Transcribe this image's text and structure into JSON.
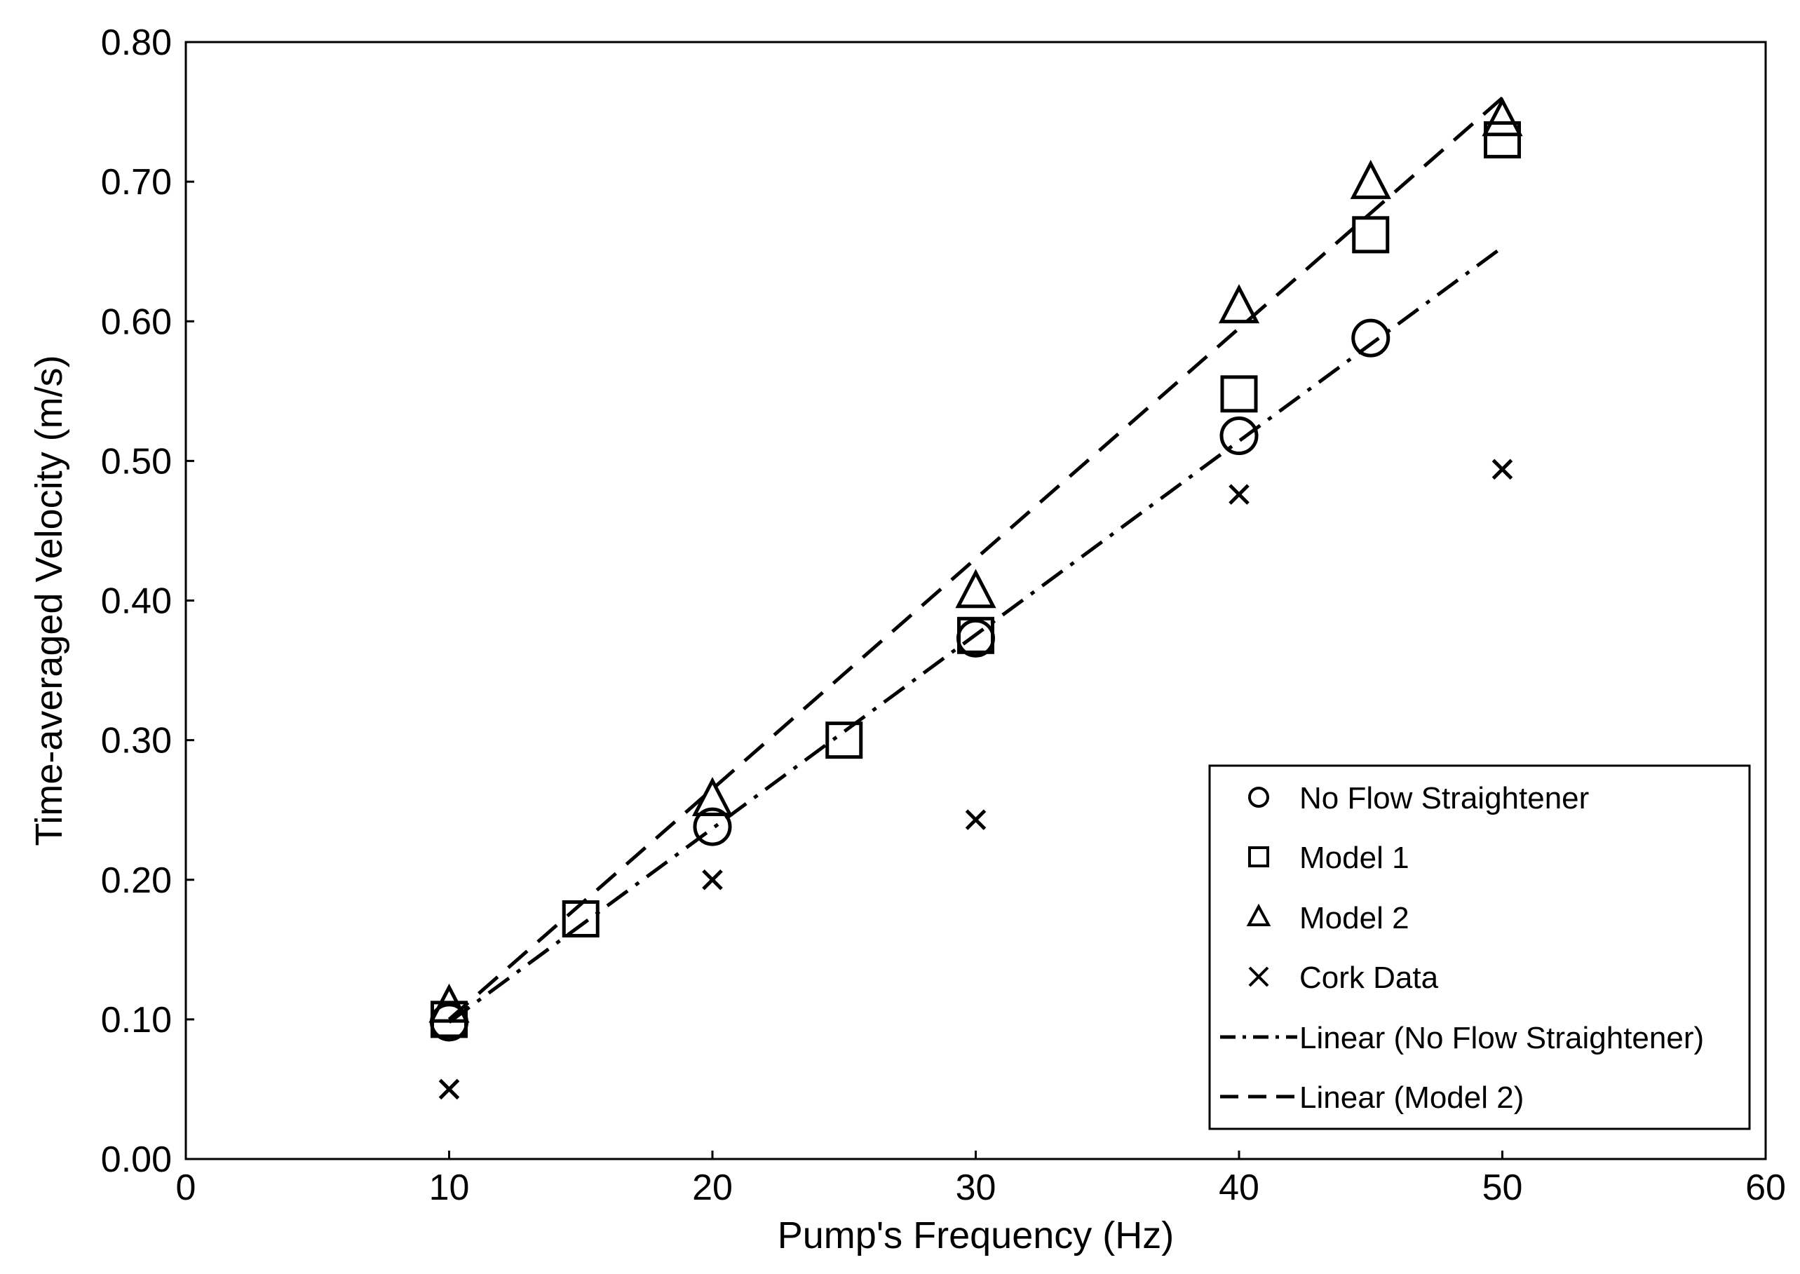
{
  "chart_data": {
    "type": "scatter",
    "title": "",
    "xlabel": "Pump's Frequency (Hz)",
    "ylabel": "Time-averaged  Velocity (m/s)",
    "xlim": [
      0,
      60
    ],
    "ylim": [
      0,
      0.8
    ],
    "xticks": [
      "0",
      "10",
      "20",
      "30",
      "40",
      "50",
      "60"
    ],
    "yticks": [
      "0.00",
      "0.10",
      "0.20",
      "0.30",
      "0.40",
      "0.50",
      "0.60",
      "0.70",
      "0.80"
    ],
    "grid": false,
    "legend_position": "bottom-right",
    "series": [
      {
        "name": "No Flow Straightener",
        "marker": "circle",
        "points": [
          [
            10,
            0.098
          ],
          [
            20,
            0.238
          ],
          [
            30,
            0.373
          ],
          [
            40,
            0.518
          ],
          [
            45,
            0.588
          ]
        ]
      },
      {
        "name": "Model 1",
        "marker": "square",
        "points": [
          [
            10,
            0.1
          ],
          [
            15,
            0.172
          ],
          [
            25,
            0.3
          ],
          [
            30,
            0.375
          ],
          [
            40,
            0.548
          ],
          [
            45,
            0.662
          ],
          [
            50,
            0.73
          ]
        ]
      },
      {
        "name": "Model 2",
        "marker": "triangle",
        "points": [
          [
            10,
            0.108
          ],
          [
            20,
            0.256
          ],
          [
            30,
            0.405
          ],
          [
            40,
            0.609
          ],
          [
            45,
            0.698
          ],
          [
            50,
            0.743
          ]
        ]
      },
      {
        "name": "Cork Data",
        "marker": "x",
        "points": [
          [
            10,
            0.05
          ],
          [
            20,
            0.2
          ],
          [
            30,
            0.243
          ],
          [
            40,
            0.476
          ],
          [
            50,
            0.494
          ]
        ]
      }
    ],
    "trendlines": [
      {
        "name": "Linear (No Flow Straightener)",
        "style": "dash-dot",
        "x": [
          10,
          50
        ],
        "y": [
          0.098,
          0.653
        ]
      },
      {
        "name": "Linear (Model 2)",
        "style": "dashed",
        "x": [
          10,
          50
        ],
        "y": [
          0.1,
          0.76
        ]
      }
    ]
  }
}
